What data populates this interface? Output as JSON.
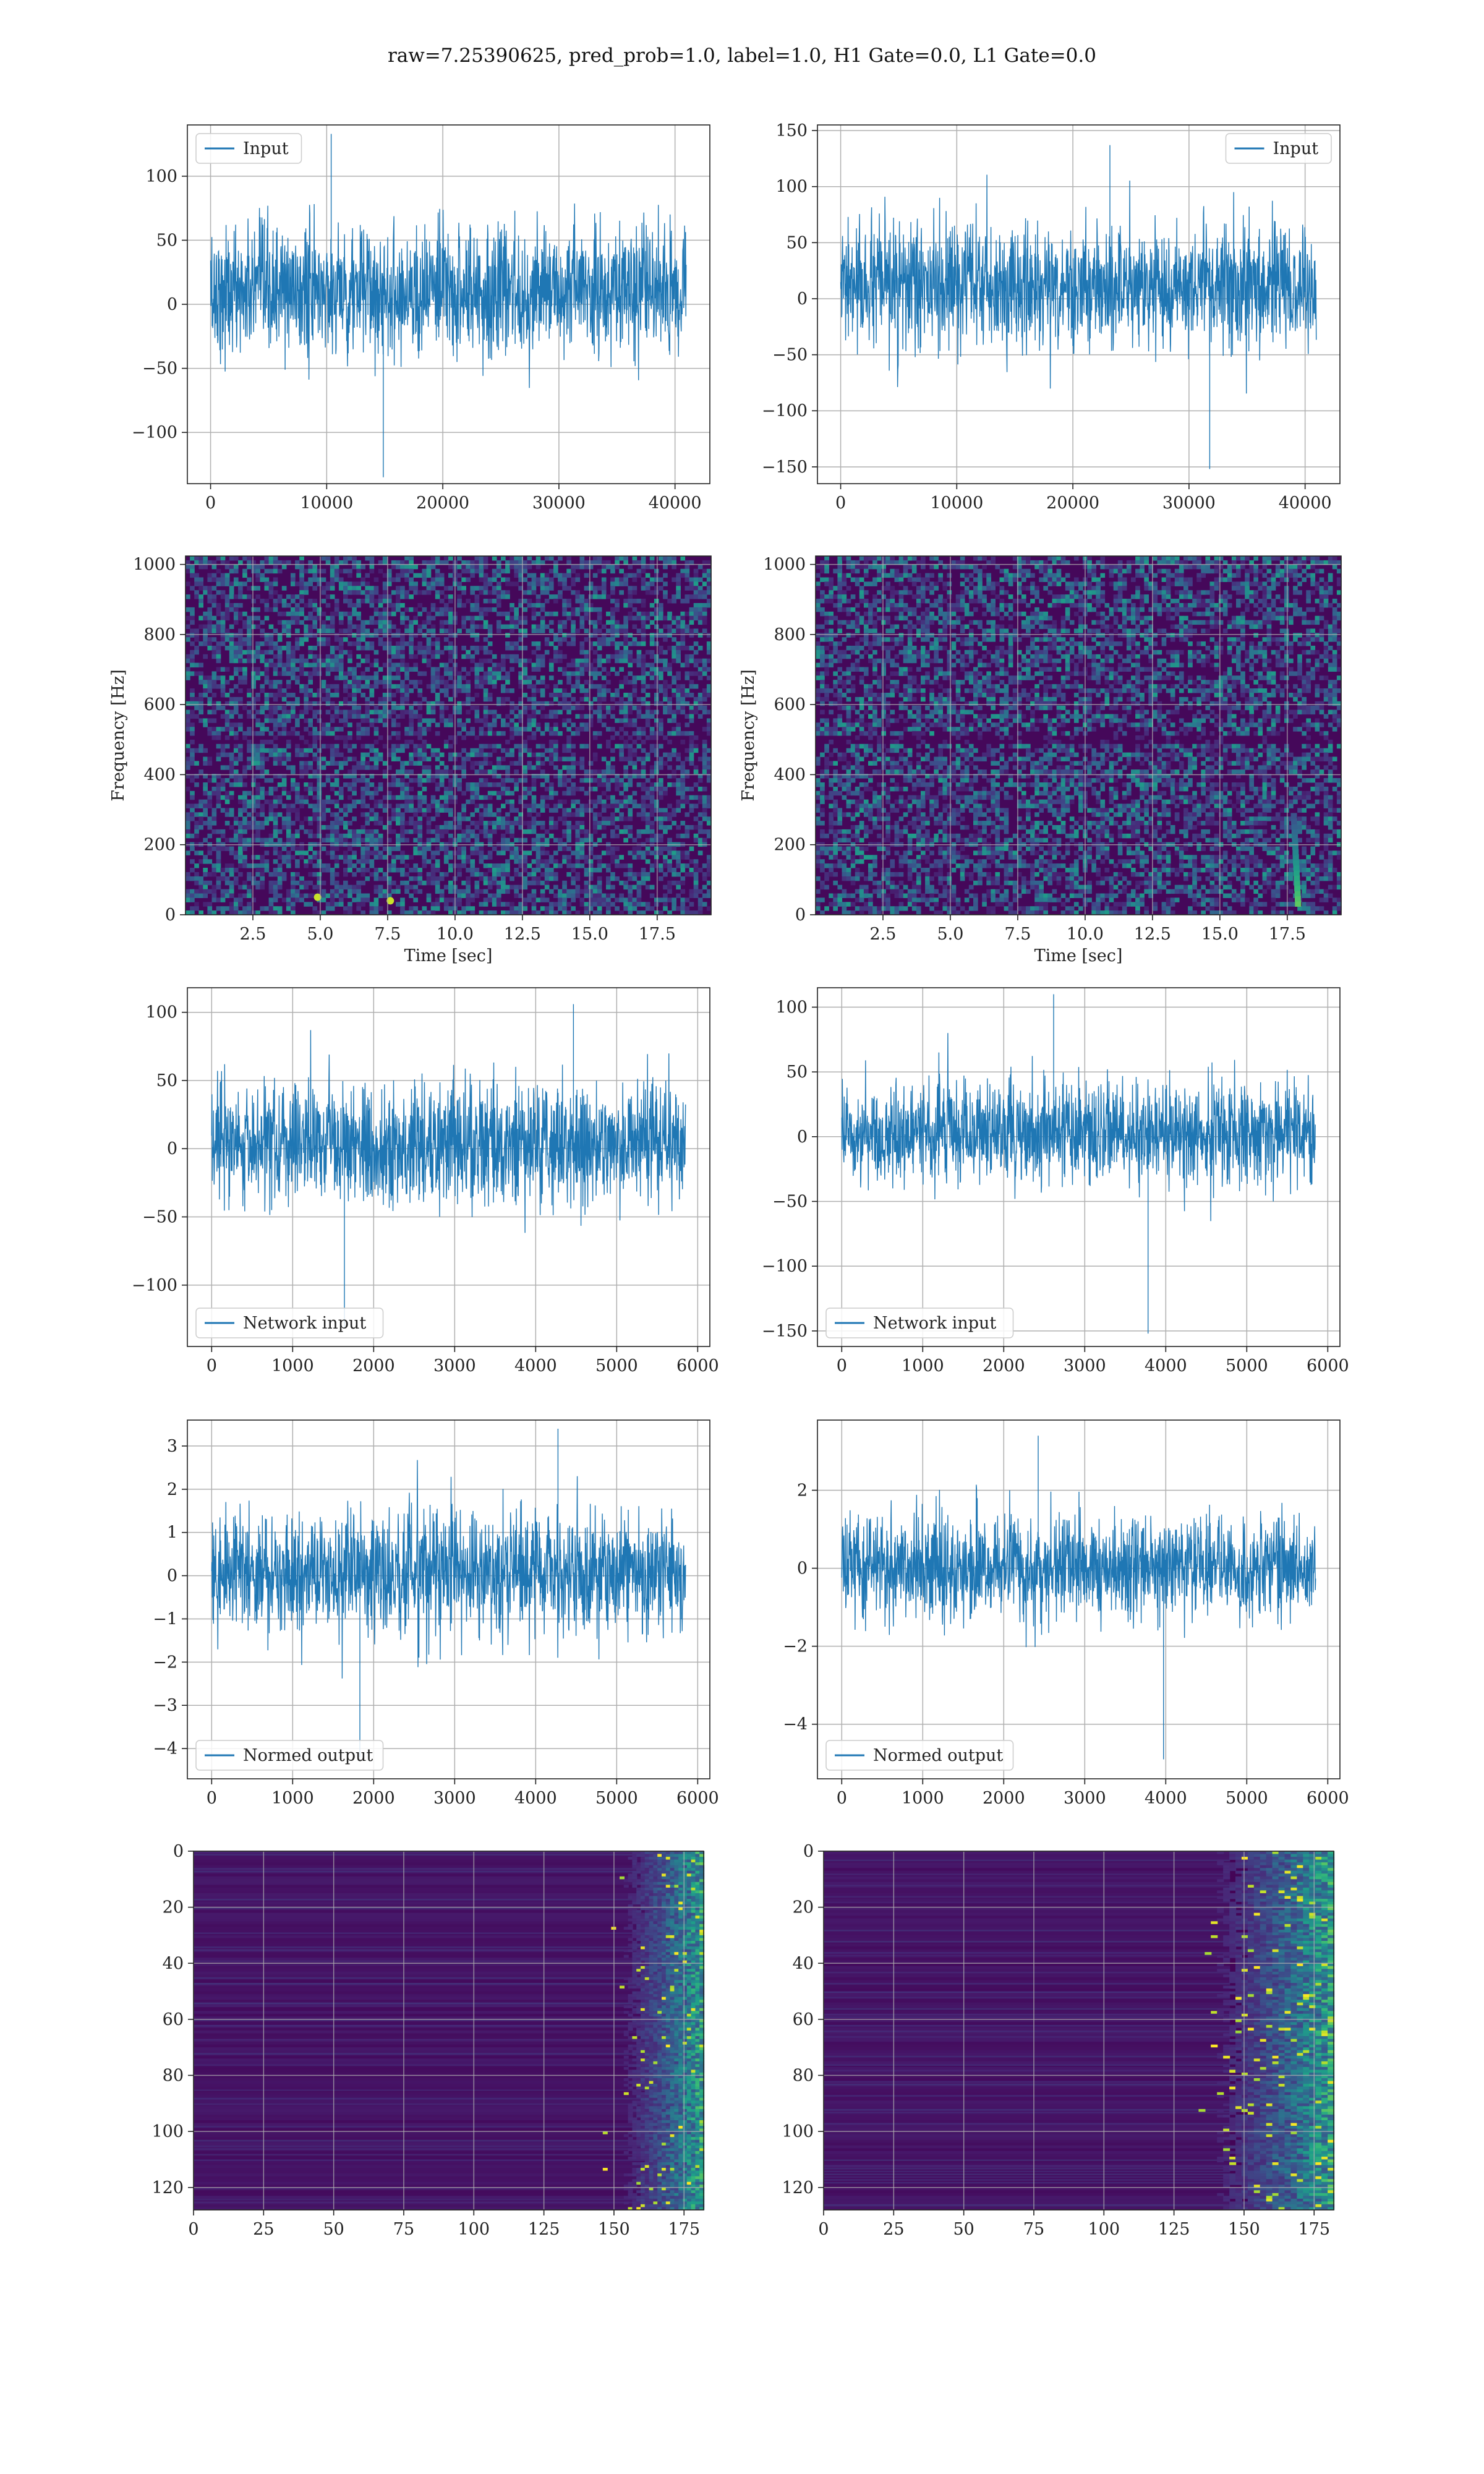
{
  "figure": {
    "suptitle": "raw=7.25390625, pred_prob=1.0, label=1.0, H1 Gate=0.0, L1 Gate=0.0",
    "colors": {
      "line": "#1f77b4",
      "grid": "#b0b0b0",
      "axes": "#222222",
      "viridis_dark": "#440154",
      "viridis_mid": "#21918c",
      "viridis_bright": "#fde725"
    }
  },
  "chart_data": [
    {
      "id": "h1-input",
      "type": "line",
      "column": "left",
      "row": 1,
      "title": "",
      "xlabel": "",
      "ylabel": "",
      "xlim": [
        -2000,
        43000
      ],
      "ylim": [
        -140,
        140
      ],
      "xticks": [
        0,
        10000,
        20000,
        30000,
        40000
      ],
      "yticks": [
        -100,
        -50,
        0,
        50,
        100
      ],
      "legend": {
        "label": "Input",
        "loc": "upper left"
      },
      "grid": true,
      "series": [
        {
          "name": "Input",
          "x": [
            0,
            40960
          ],
          "y_envelope": {
            "typical_lo": -45,
            "typical_hi": 65,
            "min": -135,
            "max": 133
          },
          "samples": 40960
        }
      ]
    },
    {
      "id": "l1-input",
      "type": "line",
      "column": "right",
      "row": 1,
      "title": "",
      "xlabel": "",
      "ylabel": "",
      "xlim": [
        -2000,
        43000
      ],
      "ylim": [
        -165,
        155
      ],
      "xticks": [
        0,
        10000,
        20000,
        30000,
        40000
      ],
      "yticks": [
        -150,
        -100,
        -50,
        0,
        50,
        100,
        150
      ],
      "legend": {
        "label": "Input",
        "loc": "upper right"
      },
      "grid": true,
      "series": [
        {
          "name": "Input",
          "x": [
            0,
            40960
          ],
          "y_envelope": {
            "typical_lo": -50,
            "typical_hi": 70,
            "min": -152,
            "max": 137
          },
          "samples": 40960
        }
      ]
    },
    {
      "id": "h1-spectrogram",
      "type": "heatmap",
      "column": "left",
      "row": 2,
      "title": "",
      "xlabel": "Time [sec]",
      "ylabel": "Frequency [Hz]",
      "xlim": [
        0,
        19.5
      ],
      "ylim": [
        0,
        1024
      ],
      "xticks": [
        2.5,
        5.0,
        7.5,
        10.0,
        12.5,
        15.0,
        17.5
      ],
      "xtick_labels": [
        "2.5",
        "5.0",
        "7.5",
        "10.0",
        "12.5",
        "15.0",
        "17.5"
      ],
      "yticks": [
        0,
        200,
        400,
        600,
        800,
        1000
      ],
      "grid": true,
      "colormap": "viridis",
      "features": [
        {
          "kind": "dark-band",
          "frequency": 500
        },
        {
          "kind": "bright-spot",
          "time": 7.6,
          "frequency": 40
        },
        {
          "kind": "bright-spot",
          "time": 4.9,
          "frequency": 50
        }
      ]
    },
    {
      "id": "l1-spectrogram",
      "type": "heatmap",
      "column": "right",
      "row": 2,
      "title": "",
      "xlabel": "Time [sec]",
      "ylabel": "Frequency [Hz]",
      "xlim": [
        0,
        19.5
      ],
      "ylim": [
        0,
        1024
      ],
      "xticks": [
        2.5,
        5.0,
        7.5,
        10.0,
        12.5,
        15.0,
        17.5
      ],
      "xtick_labels": [
        "2.5",
        "5.0",
        "7.5",
        "10.0",
        "12.5",
        "15.0",
        "17.5"
      ],
      "yticks": [
        0,
        200,
        400,
        600,
        800,
        1000
      ],
      "grid": true,
      "colormap": "viridis",
      "features": [
        {
          "kind": "dark-band",
          "frequency": 500
        },
        {
          "kind": "chirp",
          "time": 17.9,
          "frequency_range": [
            30,
            280
          ]
        }
      ]
    },
    {
      "id": "h1-network-input",
      "type": "line",
      "column": "left",
      "row": 3,
      "title": "",
      "xlabel": "",
      "ylabel": "",
      "xlim": [
        -300,
        6150
      ],
      "ylim": [
        -145,
        118
      ],
      "xticks": [
        0,
        1000,
        2000,
        3000,
        4000,
        5000,
        6000
      ],
      "yticks": [
        -100,
        -50,
        0,
        50,
        100
      ],
      "legend": {
        "label": "Network input",
        "loc": "lower left"
      },
      "grid": true,
      "series": [
        {
          "name": "Network input",
          "x": [
            0,
            5850
          ],
          "y_envelope": {
            "typical_lo": -45,
            "typical_hi": 50,
            "min": -131,
            "max": 106
          },
          "samples": 5850
        }
      ]
    },
    {
      "id": "l1-network-input",
      "type": "line",
      "column": "right",
      "row": 3,
      "title": "",
      "xlabel": "",
      "ylabel": "",
      "xlim": [
        -300,
        6150
      ],
      "ylim": [
        -162,
        115
      ],
      "xticks": [
        0,
        1000,
        2000,
        3000,
        4000,
        5000,
        6000
      ],
      "yticks": [
        -150,
        -100,
        -50,
        0,
        50,
        100
      ],
      "legend": {
        "label": "Network input",
        "loc": "lower left"
      },
      "grid": true,
      "series": [
        {
          "name": "Network input",
          "x": [
            0,
            5850
          ],
          "y_envelope": {
            "typical_lo": -40,
            "typical_hi": 45,
            "min": -152,
            "max": 110
          },
          "samples": 5850
        }
      ]
    },
    {
      "id": "h1-normed-output",
      "type": "line",
      "column": "left",
      "row": 4,
      "title": "",
      "xlabel": "",
      "ylabel": "",
      "xlim": [
        -300,
        6150
      ],
      "ylim": [
        -4.7,
        3.6
      ],
      "xticks": [
        0,
        1000,
        2000,
        3000,
        4000,
        5000,
        6000
      ],
      "yticks": [
        -4,
        -3,
        -2,
        -1,
        0,
        1,
        2,
        3
      ],
      "legend": {
        "label": "Normed output",
        "loc": "lower left"
      },
      "grid": true,
      "series": [
        {
          "name": "Normed output",
          "x": [
            0,
            5850
          ],
          "y_envelope": {
            "typical_lo": -1.5,
            "typical_hi": 1.6,
            "min": -4.2,
            "max": 3.4
          },
          "samples": 5850
        }
      ]
    },
    {
      "id": "l1-normed-output",
      "type": "line",
      "column": "right",
      "row": 4,
      "title": "",
      "xlabel": "",
      "ylabel": "",
      "xlim": [
        -300,
        6150
      ],
      "ylim": [
        -5.4,
        3.8
      ],
      "xticks": [
        0,
        1000,
        2000,
        3000,
        4000,
        5000,
        6000
      ],
      "yticks": [
        -4,
        -2,
        0,
        2
      ],
      "legend": {
        "label": "Normed output",
        "loc": "lower left"
      },
      "grid": true,
      "series": [
        {
          "name": "Normed output",
          "x": [
            0,
            5850
          ],
          "y_envelope": {
            "typical_lo": -1.4,
            "typical_hi": 1.5,
            "min": -4.9,
            "max": 3.4
          },
          "samples": 5850
        }
      ]
    },
    {
      "id": "h1-feature-map",
      "type": "heatmap",
      "column": "left",
      "row": 5,
      "title": "",
      "xlabel": "",
      "ylabel": "",
      "xlim": [
        0,
        182
      ],
      "ylim": [
        128,
        0
      ],
      "xticks": [
        0,
        25,
        50,
        75,
        100,
        125,
        150,
        175
      ],
      "yticks": [
        0,
        20,
        40,
        60,
        80,
        100,
        120
      ],
      "grid": true,
      "colormap": "viridis",
      "features": [
        {
          "kind": "activation-band",
          "x_range": [
            163,
            182
          ],
          "intensity": "high"
        }
      ]
    },
    {
      "id": "l1-feature-map",
      "type": "heatmap",
      "column": "right",
      "row": 5,
      "title": "",
      "xlabel": "",
      "ylabel": "",
      "xlim": [
        0,
        182
      ],
      "ylim": [
        128,
        0
      ],
      "xticks": [
        0,
        25,
        50,
        75,
        100,
        125,
        150,
        175
      ],
      "yticks": [
        0,
        20,
        40,
        60,
        80,
        100,
        120
      ],
      "grid": true,
      "colormap": "viridis",
      "features": [
        {
          "kind": "activation-band",
          "x_range": [
            145,
            182
          ],
          "intensity": "high"
        }
      ]
    }
  ]
}
